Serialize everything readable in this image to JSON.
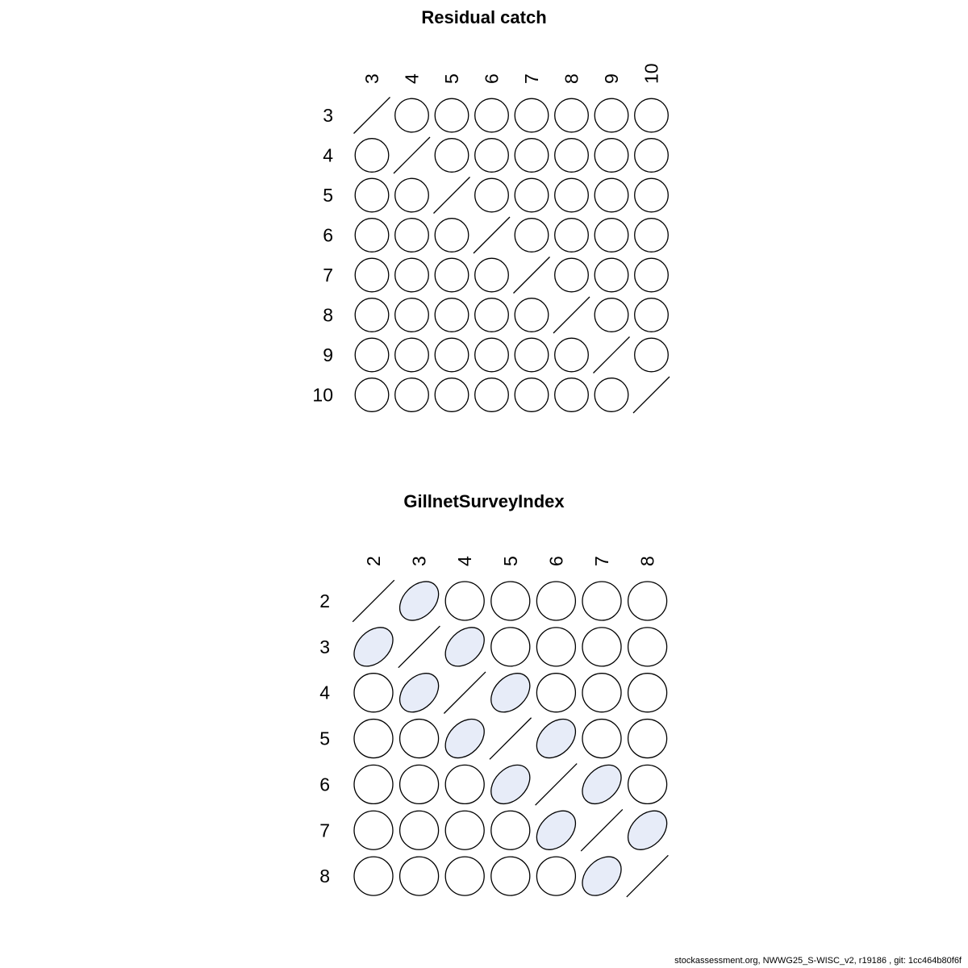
{
  "page": {
    "background": "#ffffff"
  },
  "colors": {
    "stroke": "#000000",
    "ellipse_fill": "#E7ECF8",
    "text": "#000000"
  },
  "footer": {
    "text": "stockassessment.org, NWWG25_S-WISC_v2, r19186 , git: 1cc464b80f6f"
  },
  "chart_data": [
    {
      "type": "heatmap",
      "variant": "correlation-ellipse-matrix",
      "title": "Residual catch",
      "row_labels": [
        "3",
        "4",
        "5",
        "6",
        "7",
        "8",
        "9",
        "10"
      ],
      "col_labels": [
        "3",
        "4",
        "5",
        "6",
        "7",
        "8",
        "9",
        "10"
      ],
      "diagonal_marker": "slash",
      "matrix": [
        [
          null,
          0,
          0,
          0,
          0,
          0,
          0,
          0
        ],
        [
          0,
          null,
          0,
          0,
          0,
          0,
          0,
          0
        ],
        [
          0,
          0,
          null,
          0,
          0,
          0,
          0,
          0
        ],
        [
          0,
          0,
          0,
          null,
          0,
          0,
          0,
          0
        ],
        [
          0,
          0,
          0,
          0,
          null,
          0,
          0,
          0
        ],
        [
          0,
          0,
          0,
          0,
          0,
          null,
          0,
          0
        ],
        [
          0,
          0,
          0,
          0,
          0,
          0,
          null,
          0
        ],
        [
          0,
          0,
          0,
          0,
          0,
          0,
          0,
          null
        ]
      ]
    },
    {
      "type": "heatmap",
      "variant": "correlation-ellipse-matrix",
      "title": "GillnetSurveyIndex",
      "row_labels": [
        "2",
        "3",
        "4",
        "5",
        "6",
        "7",
        "8"
      ],
      "col_labels": [
        "2",
        "3",
        "4",
        "5",
        "6",
        "7",
        "8"
      ],
      "diagonal_marker": "slash",
      "matrix": [
        [
          null,
          0.35,
          0,
          0,
          0,
          0,
          0
        ],
        [
          0.35,
          null,
          0.35,
          0,
          0,
          0,
          0
        ],
        [
          0,
          0.35,
          null,
          0.35,
          0,
          0,
          0
        ],
        [
          0,
          0,
          0.35,
          null,
          0.35,
          0,
          0
        ],
        [
          0,
          0,
          0,
          0.35,
          null,
          0.35,
          0
        ],
        [
          0,
          0,
          0,
          0,
          0.35,
          null,
          0.35
        ],
        [
          0,
          0,
          0,
          0,
          0,
          0.35,
          null
        ]
      ]
    }
  ]
}
